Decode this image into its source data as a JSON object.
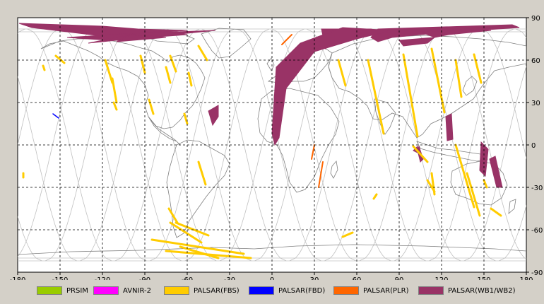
{
  "axes": {
    "lon_ticks": [
      "-180",
      "-150",
      "-120",
      "-90",
      "-60",
      "-30",
      "0",
      "30",
      "60",
      "90",
      "120",
      "150",
      "180"
    ],
    "lat_ticks": [
      "90",
      "60",
      "30",
      "0",
      "-30",
      "-60",
      "-90"
    ]
  },
  "legend": [
    {
      "label": "PRSIM",
      "color": "#99cc00"
    },
    {
      "label": "AVNIR-2",
      "color": "#ff00ff"
    },
    {
      "label": "PALSAR(FBS)",
      "color": "#ffcc00"
    },
    {
      "label": "PALSAR(FBD)",
      "color": "#0000ff"
    },
    {
      "label": "PALSAR(PLR)",
      "color": "#ff6600"
    },
    {
      "label": "PALSAR(WB1/WB2)",
      "color": "#993366"
    }
  ],
  "colors": {
    "frame_bg": "#d4d0c8",
    "map_bg": "#ffffff",
    "orbit": "#c0c0c0",
    "coast": "#808080",
    "grid": "#000000"
  },
  "features": {
    "fbs_swaths": [
      [
        [
          -153,
          63
        ],
        [
          -147,
          58
        ]
      ],
      [
        [
          -162,
          56
        ],
        [
          -161,
          53
        ]
      ],
      [
        [
          -118,
          60
        ],
        [
          -113,
          44
        ]
      ],
      [
        [
          -93,
          63
        ],
        [
          -90,
          51
        ]
      ],
      [
        [
          -113,
          47
        ],
        [
          -110,
          30
        ]
      ],
      [
        [
          -112,
          30
        ],
        [
          -110,
          25
        ]
      ],
      [
        [
          -87,
          32
        ],
        [
          -84,
          22
        ]
      ],
      [
        [
          -59,
          51
        ],
        [
          -57,
          42
        ]
      ],
      [
        [
          -52,
          70
        ],
        [
          -46,
          60
        ]
      ],
      [
        [
          -72,
          63
        ],
        [
          -68,
          52
        ]
      ],
      [
        [
          -75,
          55
        ],
        [
          -72,
          44
        ]
      ],
      [
        [
          -62,
          22
        ],
        [
          -60,
          15
        ]
      ],
      [
        [
          -52,
          -12
        ],
        [
          -47,
          -28
        ]
      ],
      [
        [
          -73,
          -45
        ],
        [
          -67,
          -55
        ]
      ],
      [
        [
          -68,
          -55
        ],
        [
          -45,
          -64
        ]
      ],
      [
        [
          -72,
          -55
        ],
        [
          -50,
          -69
        ]
      ],
      [
        [
          -85,
          -67
        ],
        [
          -20,
          -77
        ]
      ],
      [
        [
          -75,
          -75
        ],
        [
          -15,
          -80
        ]
      ],
      [
        [
          -65,
          -72
        ],
        [
          -38,
          -80
        ]
      ],
      [
        [
          -176,
          -20
        ],
        [
          -176,
          -23
        ]
      ],
      [
        [
          47,
          60
        ],
        [
          52,
          42
        ]
      ],
      [
        [
          68,
          60
        ],
        [
          79,
          8
        ]
      ],
      [
        [
          93,
          64
        ],
        [
          103,
          6
        ]
      ],
      [
        [
          113,
          68
        ],
        [
          122,
          23
        ]
      ],
      [
        [
          130,
          60
        ],
        [
          134,
          34
        ]
      ],
      [
        [
          143,
          64
        ],
        [
          148,
          44
        ]
      ],
      [
        [
          74,
          -35
        ],
        [
          72,
          -38
        ]
      ],
      [
        [
          57,
          -62
        ],
        [
          50,
          -65
        ]
      ],
      [
        [
          100,
          -1
        ],
        [
          110,
          -12
        ]
      ],
      [
        [
          130,
          0
        ],
        [
          143,
          -44
        ]
      ],
      [
        [
          113,
          -20
        ],
        [
          115,
          -35
        ]
      ],
      [
        [
          147,
          -50
        ],
        [
          138,
          -20
        ]
      ],
      [
        [
          110,
          -25
        ],
        [
          115,
          -33
        ]
      ],
      [
        [
          155,
          -45
        ],
        [
          162,
          -50
        ]
      ],
      [
        [
          150,
          -25
        ],
        [
          152,
          -30
        ]
      ]
    ],
    "fbd_swaths": [
      [
        [
          -155,
          22
        ],
        [
          -151,
          19
        ]
      ]
    ],
    "plr_swaths": [
      [
        [
          7,
          71
        ],
        [
          14,
          78
        ]
      ],
      [
        [
          36,
          -12
        ],
        [
          33,
          -30
        ]
      ],
      [
        [
          30,
          0
        ],
        [
          28,
          -10
        ]
      ]
    ],
    "wb_bands": [
      [
        [
          -179,
          86
        ],
        [
          -120,
          84
        ],
        [
          -95,
          82
        ],
        [
          -60,
          81
        ],
        [
          -120,
          77
        ],
        [
          -170,
          83
        ]
      ],
      [
        [
          -145,
          76
        ],
        [
          -80,
          80
        ],
        [
          -60,
          78
        ],
        [
          -115,
          74
        ]
      ],
      [
        [
          -95,
          79
        ],
        [
          -40,
          81
        ],
        [
          -80,
          77
        ],
        [
          -130,
          72
        ]
      ],
      [
        [
          -100,
          78
        ],
        [
          -75,
          76
        ],
        [
          -110,
          73
        ]
      ],
      [
        [
          75,
          82
        ],
        [
          170,
          85
        ],
        [
          175,
          83
        ],
        [
          115,
          79
        ],
        [
          85,
          76
        ],
        [
          75,
          73
        ],
        [
          70,
          76
        ]
      ],
      [
        [
          35,
          82
        ],
        [
          70,
          82
        ],
        [
          80,
          80
        ],
        [
          60,
          77
        ],
        [
          40,
          72
        ],
        [
          38,
          68
        ]
      ],
      [
        [
          3,
          55
        ],
        [
          20,
          72
        ],
        [
          50,
          83
        ],
        [
          85,
          81
        ],
        [
          60,
          75
        ],
        [
          30,
          66
        ],
        [
          10,
          40
        ],
        [
          5,
          5
        ],
        [
          2,
          0
        ],
        [
          0,
          8
        ]
      ],
      [
        [
          105,
          80
        ],
        [
          140,
          82
        ],
        [
          155,
          81
        ],
        [
          125,
          78
        ],
        [
          115,
          76
        ]
      ],
      [
        [
          90,
          74
        ],
        [
          115,
          76
        ],
        [
          110,
          72
        ],
        [
          93,
          70
        ]
      ],
      [
        [
          -45,
          24
        ],
        [
          -38,
          28
        ],
        [
          -38,
          20
        ],
        [
          -42,
          14
        ]
      ],
      [
        [
          104,
          -1
        ],
        [
          107,
          -10
        ],
        [
          105,
          -12
        ],
        [
          103,
          -4
        ]
      ],
      [
        [
          123,
          20
        ],
        [
          127,
          22
        ],
        [
          128,
          4
        ],
        [
          124,
          3
        ]
      ],
      [
        [
          148,
          2
        ],
        [
          153,
          -3
        ],
        [
          151,
          -22
        ],
        [
          147,
          -18
        ]
      ],
      [
        [
          154,
          -10
        ],
        [
          158,
          -8
        ],
        [
          163,
          -30
        ],
        [
          159,
          -30
        ]
      ],
      [
        [
          100,
          -4
        ],
        [
          104,
          -6
        ],
        [
          103,
          -1
        ]
      ]
    ],
    "prism": [],
    "avnir": []
  }
}
